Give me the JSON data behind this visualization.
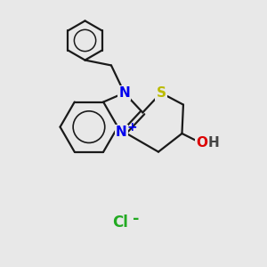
{
  "bg_color": "#e8e8e8",
  "bond_color": "#1a1a1a",
  "bond_width": 1.6,
  "atom_colors": {
    "N": "#0000ee",
    "S": "#bbbb00",
    "O": "#dd0000",
    "H": "#444444",
    "C": "#1a1a1a",
    "Cl": "#22aa22"
  },
  "font_size": 11,
  "small_font_size": 9
}
